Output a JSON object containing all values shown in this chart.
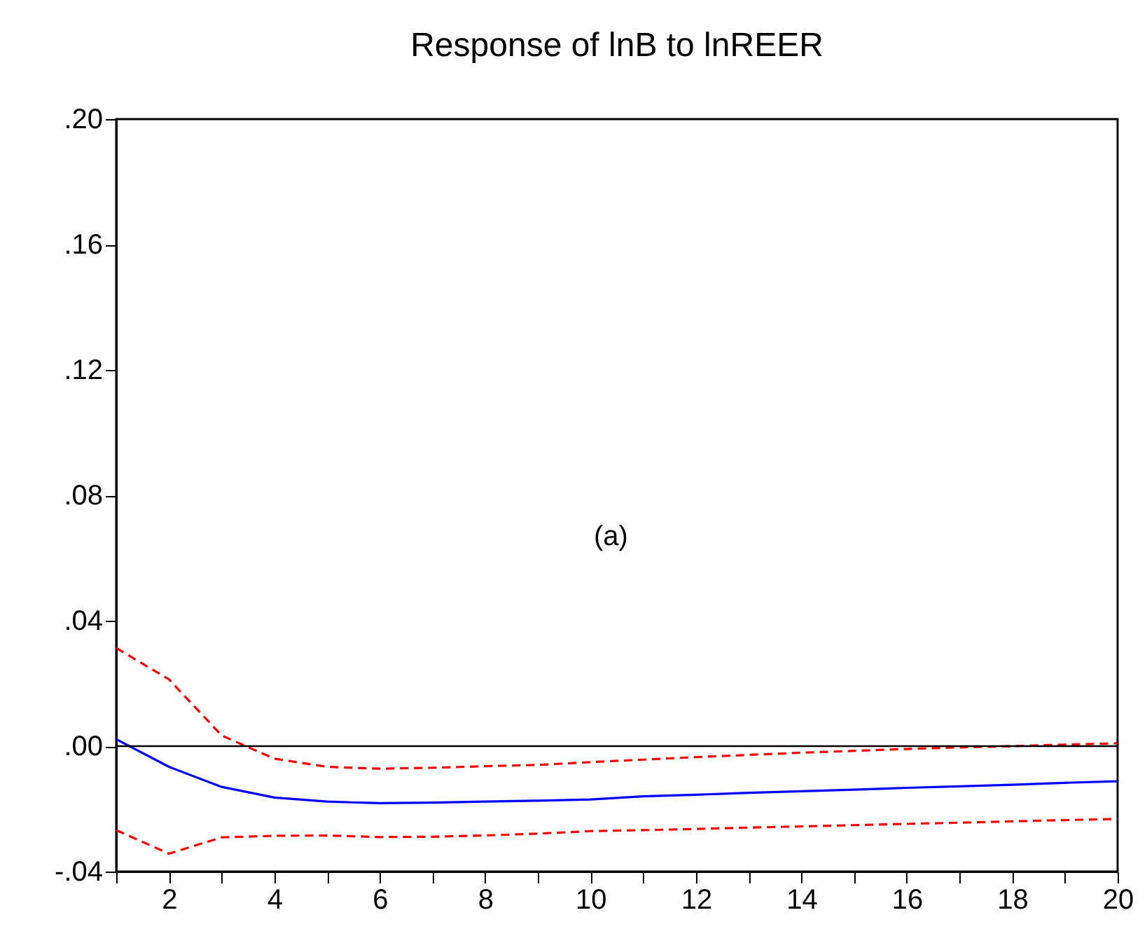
{
  "chart_data": {
    "type": "line",
    "title": "Response of lnB to lnREER",
    "x": [
      1,
      2,
      3,
      4,
      5,
      6,
      7,
      8,
      9,
      10,
      11,
      12,
      13,
      14,
      15,
      16,
      17,
      18,
      19,
      20
    ],
    "series": [
      {
        "color": "#0000ff",
        "line_style": "solid",
        "values": [
          0.0022,
          -0.0066,
          -0.013,
          -0.0164,
          -0.0177,
          -0.0182,
          -0.018,
          -0.0177,
          -0.0174,
          -0.017,
          -0.016,
          -0.0155,
          -0.0149,
          -0.0144,
          -0.0139,
          -0.0133,
          -0.0128,
          -0.0123,
          -0.0117,
          -0.0112
        ]
      },
      {
        "color": "#ff0000",
        "line_style": "dashed",
        "values": [
          0.0313,
          0.0213,
          0.0034,
          -0.004,
          -0.0066,
          -0.0072,
          -0.0069,
          -0.0064,
          -0.006,
          -0.0051,
          -0.0043,
          -0.0035,
          -0.0028,
          -0.0021,
          -0.0015,
          -0.0009,
          -0.0004,
          0.0,
          0.0005,
          0.0009
        ]
      },
      {
        "color": "#ff0000",
        "line_style": "dashed",
        "values": [
          -0.0268,
          -0.0343,
          -0.0291,
          -0.0286,
          -0.0285,
          -0.029,
          -0.0289,
          -0.0285,
          -0.0279,
          -0.0271,
          -0.0268,
          -0.0264,
          -0.026,
          -0.0256,
          -0.0252,
          -0.0248,
          -0.0244,
          -0.024,
          -0.0236,
          -0.0232
        ]
      }
    ],
    "xlim": [
      1,
      20
    ],
    "xticks": [
      {
        "value": 1,
        "label": null
      },
      2,
      {
        "value": 3,
        "label": null
      },
      4,
      {
        "value": 5,
        "label": null
      },
      6,
      {
        "value": 7,
        "label": null
      },
      8,
      {
        "value": 9,
        "label": null
      },
      10,
      {
        "value": 11,
        "label": null
      },
      12,
      {
        "value": 13,
        "label": null
      },
      14,
      {
        "value": 15,
        "label": null
      },
      16,
      {
        "value": 17,
        "label": null
      },
      18,
      {
        "value": 19,
        "label": null
      },
      20
    ],
    "ylim": [
      -0.04,
      0.2
    ],
    "yticks": [
      {
        "value": -0.04,
        "label": "-.04"
      },
      {
        "value": 0.0,
        "label": ".00"
      },
      {
        "value": 0.04,
        "label": ".04"
      },
      {
        "value": 0.08,
        "label": ".08"
      },
      {
        "value": 0.12,
        "label": ".12"
      },
      {
        "value": 0.16,
        "label": ".16"
      },
      {
        "value": 0.2,
        "label": ".20"
      }
    ],
    "ref_lines": [
      {
        "axis": "y",
        "value": 0.0,
        "color": "#000000",
        "line_style": "solid"
      }
    ],
    "annotations": [
      "(a)"
    ],
    "grid": false,
    "marker": "none"
  }
}
